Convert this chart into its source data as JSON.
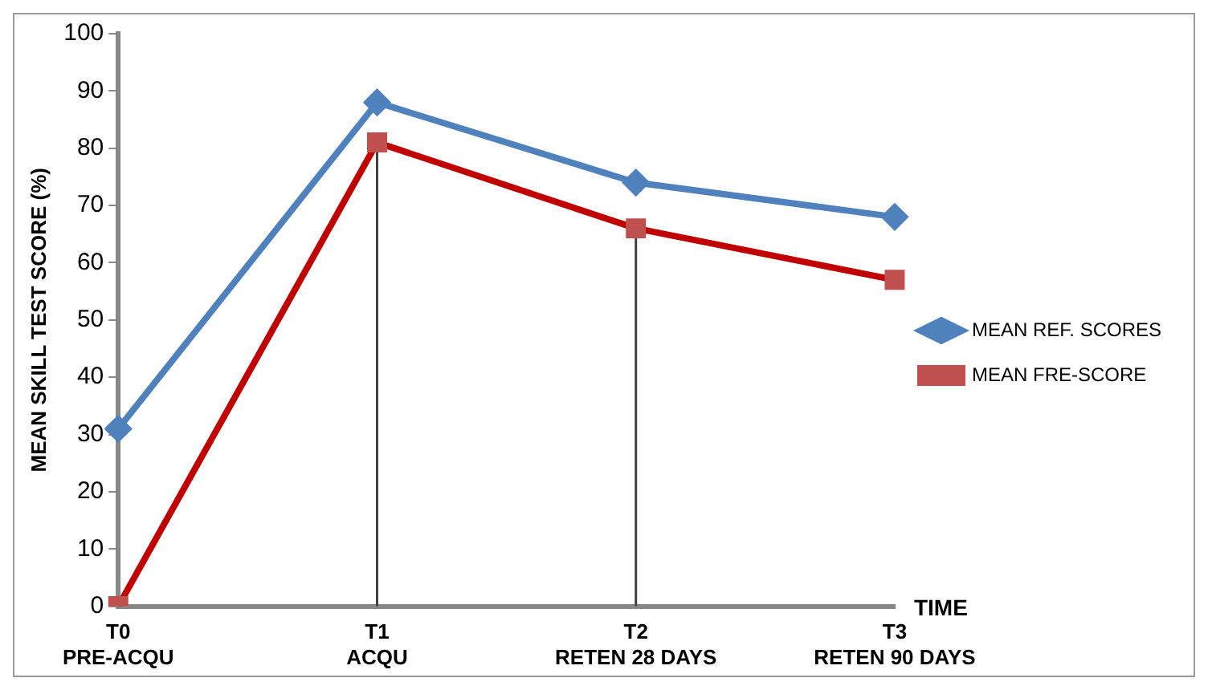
{
  "chart_data": {
    "type": "line",
    "categories": [
      "T0\nPRE-ACQU",
      "T1\nACQU",
      "T2\nRETEN 28 DAYS",
      "T3\nRETEN 90 DAYS"
    ],
    "series": [
      {
        "name": "MEAN REF. SCORES",
        "color": "#4f81bd",
        "marker": "diamond",
        "values": [
          31,
          88,
          74,
          68
        ]
      },
      {
        "name": "MEAN FRE-SCORE",
        "color": "#c00000",
        "marker": "square",
        "values": [
          0,
          81,
          66,
          57
        ]
      }
    ],
    "xlabel": "TIME",
    "ylabel": "MEAN SKILL TEST SCORE (%)",
    "ylim": [
      0,
      100
    ],
    "yticks": [
      0,
      10,
      20,
      30,
      40,
      50,
      60,
      70,
      80,
      90,
      100
    ],
    "grid": false,
    "legend": "right",
    "ref_lines": [
      {
        "axis": "x",
        "value": "T1\nACQU",
        "color": "#404040"
      },
      {
        "axis": "x",
        "value": "T2\nRETEN 28 DAYS",
        "color": "#404040"
      }
    ]
  }
}
